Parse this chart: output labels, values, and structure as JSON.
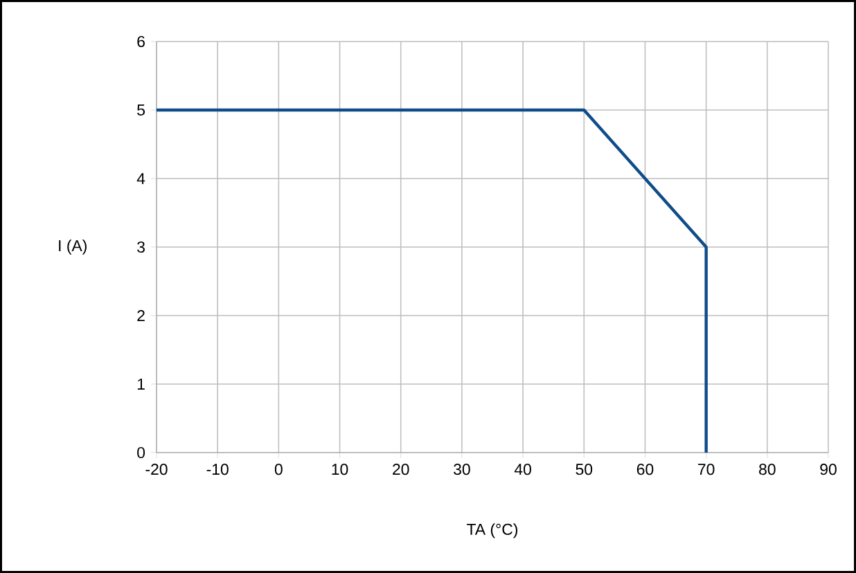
{
  "chart_data": {
    "type": "line",
    "xlabel": "TA (°C)",
    "ylabel": "I (A)",
    "x": [
      -20,
      50,
      70,
      70
    ],
    "series": [
      {
        "color": "#0f4c8a",
        "values": [
          5,
          5,
          3,
          0
        ]
      }
    ],
    "xlim": [
      -20,
      90
    ],
    "xticks": [
      -20,
      -10,
      0,
      10,
      20,
      30,
      40,
      50,
      60,
      70,
      80,
      90
    ],
    "ylim": [
      0,
      6
    ],
    "yticks": [
      0,
      1,
      2,
      3,
      4,
      5,
      6
    ],
    "grid": true,
    "marker": "none",
    "line_style": "solid"
  }
}
